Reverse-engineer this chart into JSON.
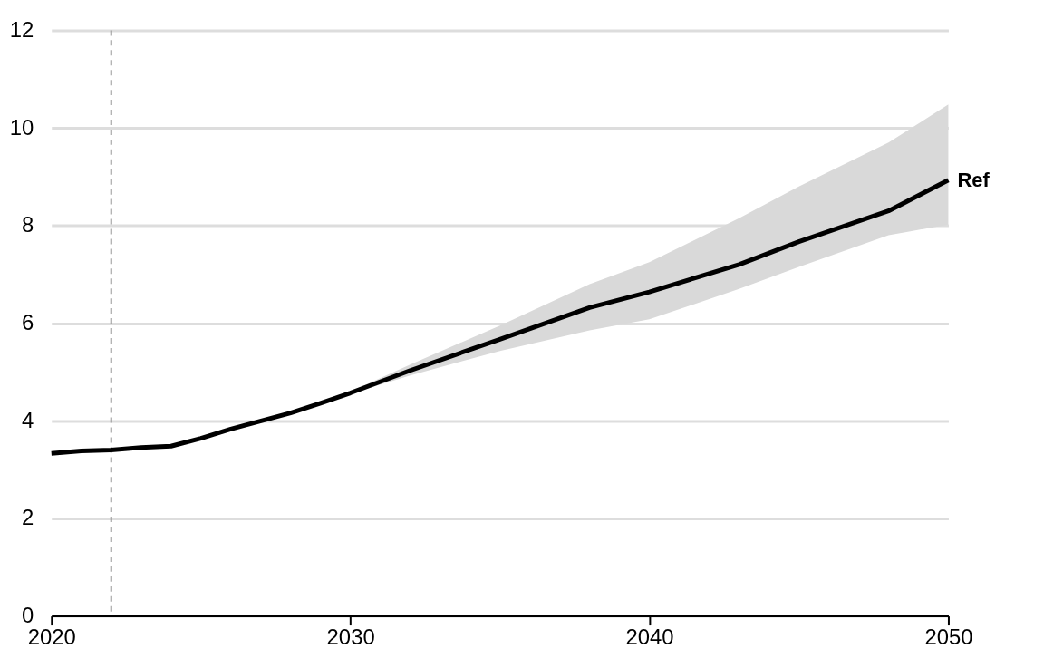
{
  "chart_data": {
    "type": "line",
    "x": [
      2020,
      2021,
      2022,
      2023,
      2024,
      2025,
      2026,
      2028,
      2029,
      2030,
      2032,
      2035,
      2038,
      2040,
      2043,
      2045,
      2048,
      2050
    ],
    "series": [
      {
        "name": "Ref",
        "color": "#000000",
        "values": [
          3.33,
          3.38,
          3.4,
          3.45,
          3.48,
          3.64,
          3.83,
          4.16,
          4.36,
          4.57,
          5.03,
          5.67,
          6.32,
          6.64,
          7.2,
          7.67,
          8.3,
          8.93
        ],
        "lower": [
          null,
          null,
          null,
          null,
          null,
          null,
          null,
          null,
          4.36,
          4.55,
          4.93,
          5.43,
          5.85,
          6.08,
          6.7,
          7.15,
          7.8,
          8.02
        ],
        "upper": [
          null,
          null,
          null,
          null,
          null,
          null,
          null,
          null,
          4.36,
          4.6,
          5.15,
          5.95,
          6.8,
          7.25,
          8.15,
          8.8,
          9.7,
          10.48
        ]
      }
    ],
    "xlim": [
      2020,
      2050
    ],
    "xticks": [
      2020,
      2030,
      2040,
      2050
    ],
    "ylim": [
      0,
      12
    ],
    "yticks": [
      0,
      2,
      4,
      6,
      8,
      10,
      12
    ],
    "grid": "y",
    "marker": "none",
    "line_style": "solid",
    "legend": false,
    "ref_lines": [
      {
        "axis": "x",
        "value": 2022,
        "color": "#999999",
        "line_style": "dashed"
      }
    ]
  }
}
